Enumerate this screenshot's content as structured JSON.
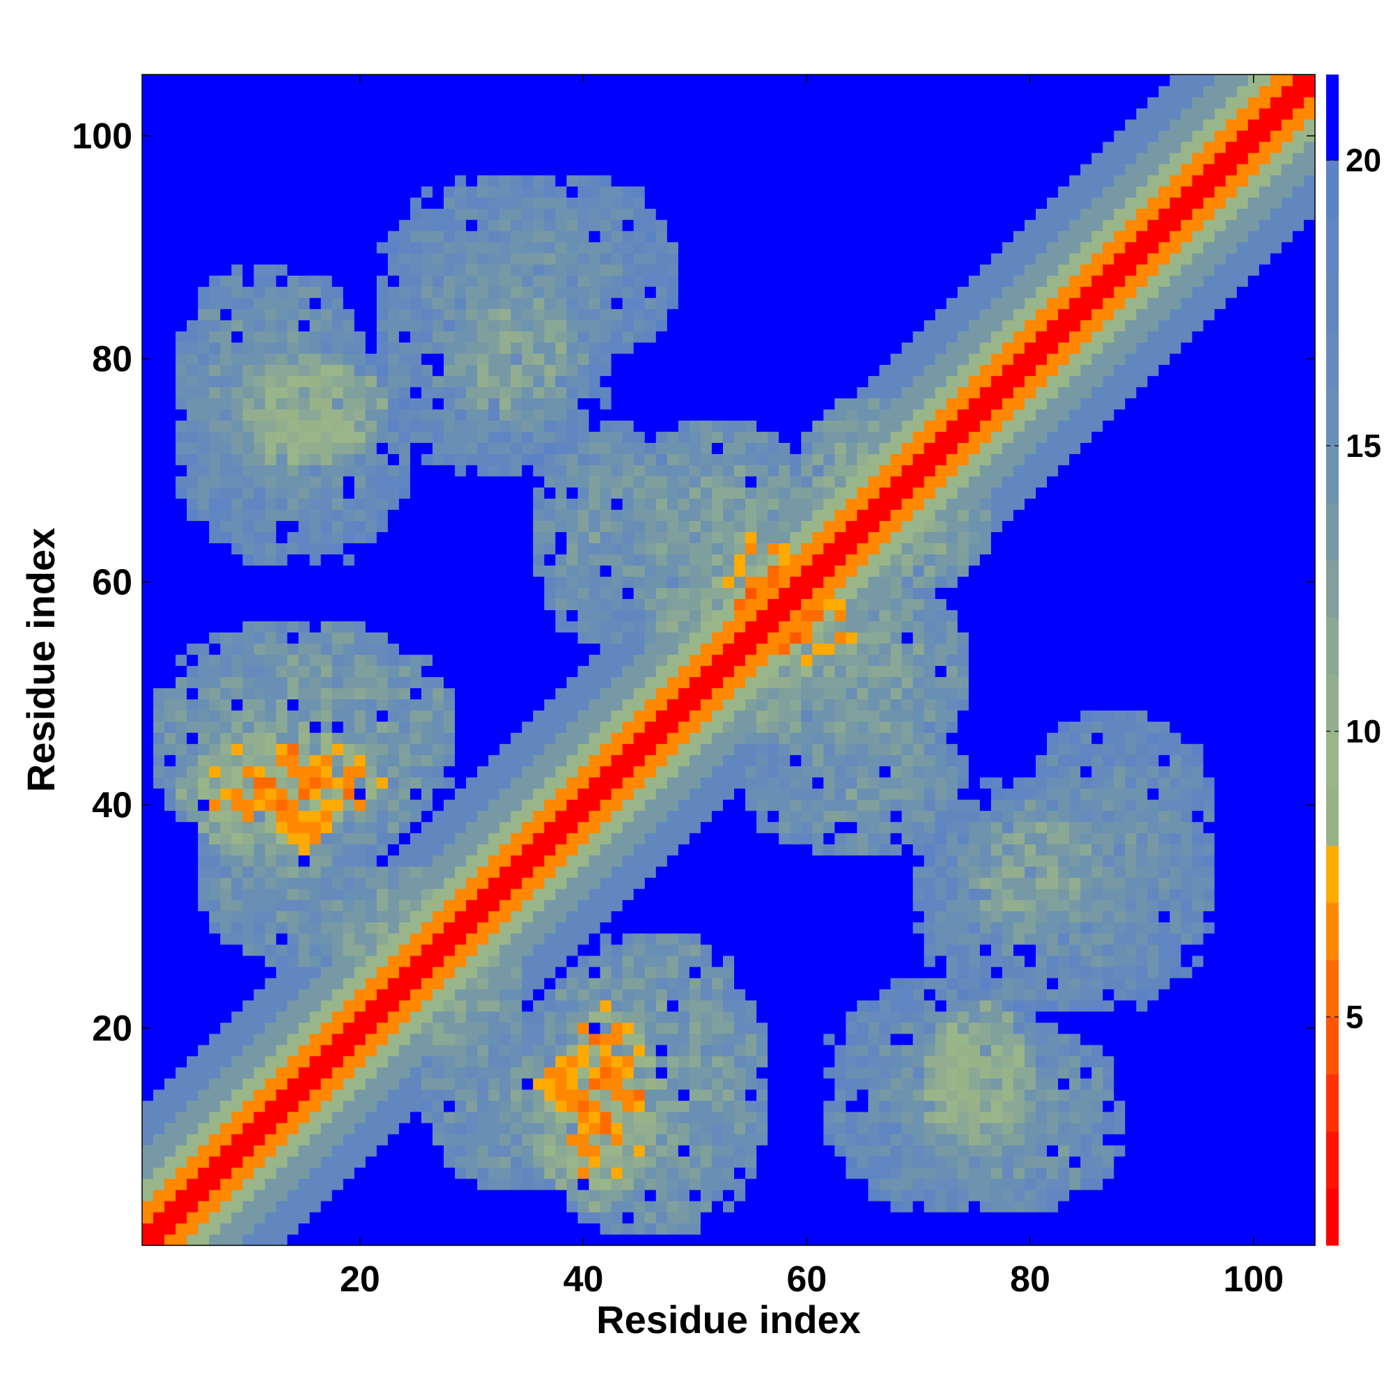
{
  "chart_data": {
    "type": "heatmap",
    "title": "",
    "xlabel": "Residue index",
    "ylabel": "Residue index",
    "n": 105,
    "xlim": [
      0.5,
      105.5
    ],
    "ylim": [
      0.5,
      105.5
    ],
    "x_ticks": [
      20,
      40,
      60,
      80,
      100
    ],
    "y_ticks": [
      20,
      40,
      60,
      80,
      100
    ],
    "colorbar": {
      "ticks": [
        5,
        10,
        15,
        20
      ],
      "range": [
        1,
        21.5
      ],
      "levels": [
        {
          "max": 2,
          "color": "#ff0000"
        },
        {
          "max": 3,
          "color": "#ff1400"
        },
        {
          "max": 4,
          "color": "#ff3300"
        },
        {
          "max": 5,
          "color": "#ff5500"
        },
        {
          "max": 6,
          "color": "#ff6a00"
        },
        {
          "max": 7,
          "color": "#ff8800"
        },
        {
          "max": 8,
          "color": "#ffaa00"
        },
        {
          "max": 9,
          "color": "#99b388"
        },
        {
          "max": 10,
          "color": "#99b58a"
        },
        {
          "max": 11,
          "color": "#93ae8f"
        },
        {
          "max": 12,
          "color": "#8aa896"
        },
        {
          "max": 13,
          "color": "#7fa09c"
        },
        {
          "max": 14,
          "color": "#7799a6"
        },
        {
          "max": 15,
          "color": "#6e93ae"
        },
        {
          "max": 16,
          "color": "#6a8fb5"
        },
        {
          "max": 17,
          "color": "#668abb"
        },
        {
          "max": 18,
          "color": "#6287bf"
        },
        {
          "max": 19,
          "color": "#5f85c3"
        },
        {
          "max": 20,
          "color": "#5b83c6"
        },
        {
          "max": 99,
          "color": "#0000ff"
        }
      ]
    },
    "diagonal_band": [
      {
        "offset_max": 1,
        "value": 1
      },
      {
        "offset_max": 3,
        "value": 6
      },
      {
        "offset_max": 5,
        "value": 9.5
      },
      {
        "offset_max": 8,
        "value": 13
      },
      {
        "offset_max": 12,
        "value": 17
      }
    ],
    "contact_regions": [
      {
        "i": [
          2,
          28
        ],
        "j": [
          36,
          56
        ],
        "value": 13
      },
      {
        "i": [
          6,
          22
        ],
        "j": [
          38,
          46
        ],
        "value": 7
      },
      {
        "i": [
          4,
          20
        ],
        "j": [
          68,
          88
        ],
        "value": 14
      },
      {
        "i": [
          10,
          22
        ],
        "j": [
          71,
          80
        ],
        "value": 10
      },
      {
        "i": [
          26,
          48
        ],
        "j": [
          80,
          96
        ],
        "value": 15
      },
      {
        "i": [
          18,
          34
        ],
        "j": [
          18,
          30
        ],
        "value": 12
      },
      {
        "i": [
          36,
          48
        ],
        "j": [
          55,
          74
        ],
        "value": 14
      },
      {
        "i": [
          46,
          62
        ],
        "j": [
          48,
          68
        ],
        "value": 12
      },
      {
        "i": [
          52,
          60
        ],
        "j": [
          54,
          64
        ],
        "value": 7
      },
      {
        "i": [
          60,
          74
        ],
        "j": [
          44,
          60
        ],
        "value": 13
      },
      {
        "i": [
          64,
          76
        ],
        "j": [
          60,
          70
        ],
        "value": 12
      },
      {
        "i": [
          70,
          96
        ],
        "j": [
          22,
          42
        ],
        "value": 15
      },
      {
        "i": [
          74,
          86
        ],
        "j": [
          28,
          40
        ],
        "value": 12
      },
      {
        "i": [
          62,
          82
        ],
        "j": [
          4,
          24
        ],
        "value": 15
      },
      {
        "i": [
          70,
          78
        ],
        "j": [
          10,
          18
        ],
        "value": 10
      },
      {
        "i": [
          36,
          46
        ],
        "j": [
          4,
          18
        ],
        "value": 10
      },
      {
        "i": [
          26,
          42
        ],
        "j": [
          6,
          22
        ],
        "value": 14
      },
      {
        "i": [
          36,
          46
        ],
        "j": [
          10,
          18
        ],
        "value": 7
      }
    ]
  }
}
